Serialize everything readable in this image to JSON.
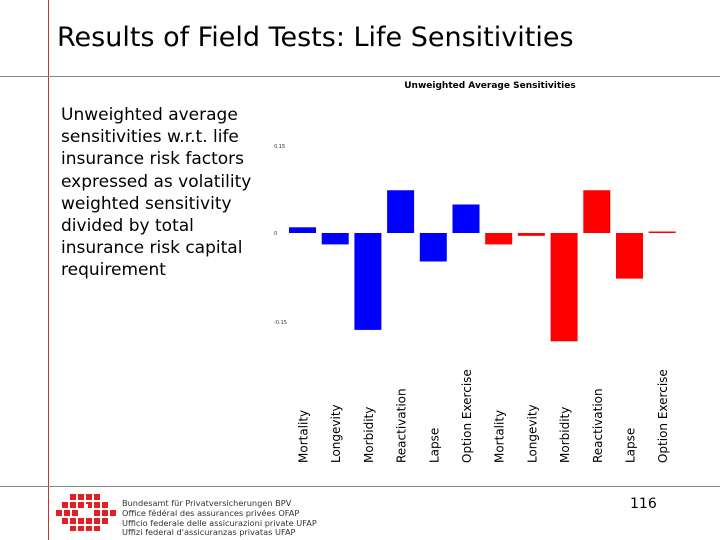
{
  "slide": {
    "title": "Results of Field Tests: Life Sensitivities",
    "description": "Unweighted average sensitivities w.r.t. life insurance risk factors expressed as volatility weighted sensitivity divided by total insurance risk capital requirement",
    "page_number": "116"
  },
  "footer": {
    "agency_lines": [
      "Bundesamt für Privatversicherungen BPV",
      "Office fédéral des assurances privées OFAP",
      "Ufficio federale delle assicurazioni private UFAP",
      "Uffizi federal d'assicuranzas privatas UFAP"
    ]
  },
  "chart_data": {
    "type": "bar",
    "title": "Unweighted Average Sensitivities",
    "categories": [
      "Mortality",
      "Longevity",
      "Morbidity",
      "Reactivation",
      "Lapse",
      "Option Exercise",
      "Mortality",
      "Longevity",
      "Morbidity",
      "Reactivation",
      "Lapse",
      "Option Exercise"
    ],
    "values": [
      0.01,
      -0.02,
      -0.17,
      0.075,
      -0.05,
      0.05,
      -0.02,
      -0.005,
      -0.19,
      0.075,
      -0.08,
      0
    ],
    "colors": [
      "#0000ff",
      "#0000ff",
      "#0000ff",
      "#0000ff",
      "#0000ff",
      "#0000ff",
      "#ff0000",
      "#ff0000",
      "#ff0000",
      "#ff0000",
      "#ff0000",
      "#ff0000"
    ],
    "y_ticks": [
      "0.15",
      "0",
      "-0.15"
    ],
    "ylim": [
      -0.2,
      0.15
    ]
  }
}
